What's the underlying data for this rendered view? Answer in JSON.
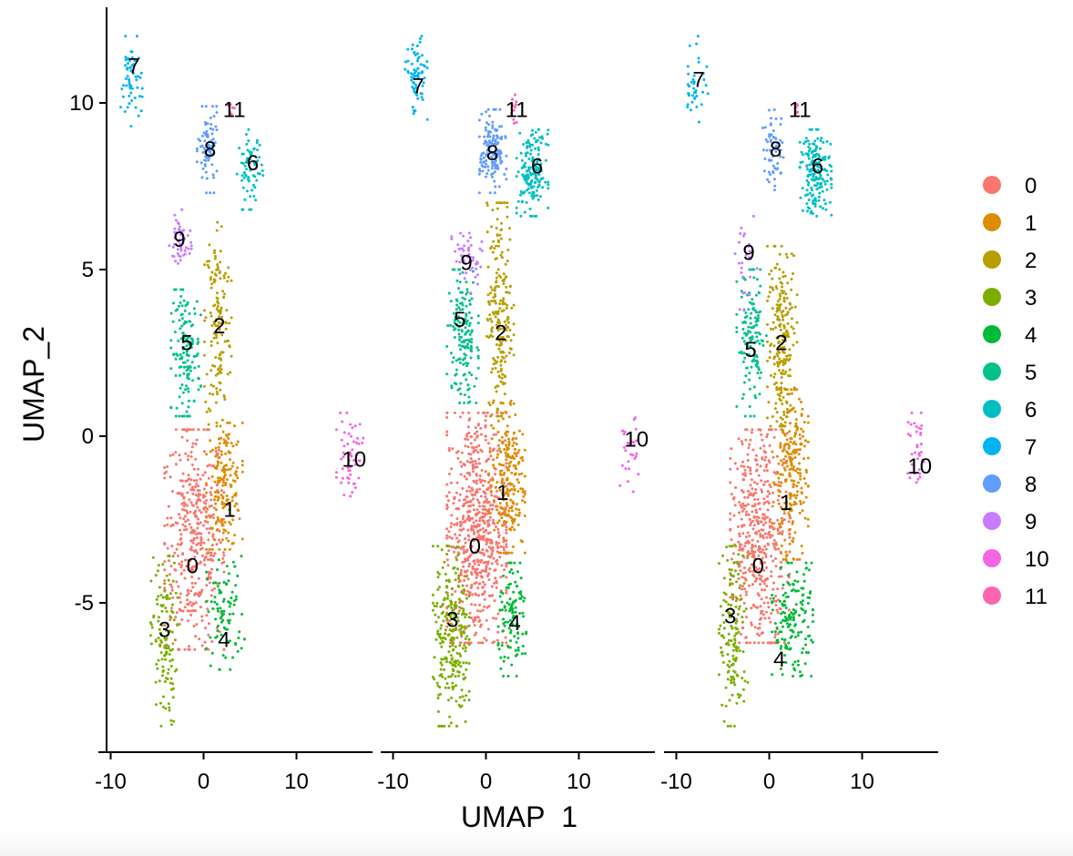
{
  "chart_data": {
    "type": "scatter",
    "xlabel": "UMAP_1",
    "ylabel": "UMAP_2",
    "xlim": [
      -10.5,
      18
    ],
    "ylim": [
      -9.5,
      12.8
    ],
    "x_ticks": [
      -10,
      0,
      10
    ],
    "y_ticks": [
      -5,
      0,
      5,
      10
    ],
    "grid": false,
    "legend_position": "right",
    "legend": [
      {
        "label": "0",
        "color": "#F8766D"
      },
      {
        "label": "1",
        "color": "#DE8C00"
      },
      {
        "label": "2",
        "color": "#B79F00"
      },
      {
        "label": "3",
        "color": "#7CAE00"
      },
      {
        "label": "4",
        "color": "#00BA38"
      },
      {
        "label": "5",
        "color": "#00C08B"
      },
      {
        "label": "6",
        "color": "#00BFC4"
      },
      {
        "label": "7",
        "color": "#00B4F0"
      },
      {
        "label": "8",
        "color": "#619CFF"
      },
      {
        "label": "9",
        "color": "#C77CFF"
      },
      {
        "label": "10",
        "color": "#F564E3"
      },
      {
        "label": "11",
        "color": "#FF64B0"
      }
    ],
    "panels": [
      {
        "clusters": [
          {
            "cluster": "0",
            "label_pos": [
              -1.2,
              -3.9
            ],
            "regions": [
              {
                "x": [
                  -4,
                  2
                ],
                "y": [
                  -6.2,
                  0
                ],
                "n": 420
              }
            ]
          },
          {
            "cluster": "1",
            "label_pos": [
              2.8,
              -2.2
            ],
            "regions": [
              {
                "x": [
                  0.5,
                  4
                ],
                "y": [
                  -3.2,
                  0.2
                ],
                "n": 170
              }
            ]
          },
          {
            "cluster": "2",
            "label_pos": [
              1.7,
              3.3
            ],
            "regions": [
              {
                "x": [
                  0.3,
                  2.8
                ],
                "y": [
                  0.5,
                  6.3
                ],
                "n": 150
              }
            ]
          },
          {
            "cluster": "3",
            "label_pos": [
              -4.2,
              -5.8
            ],
            "regions": [
              {
                "x": [
                  -5.5,
                  -3
                ],
                "y": [
                  -8.5,
                  -3.8
                ],
                "n": 130
              }
            ]
          },
          {
            "cluster": "4",
            "label_pos": [
              2.2,
              -6.1
            ],
            "regions": [
              {
                "x": [
                  0.5,
                  4.2
                ],
                "y": [
                  -6.8,
                  -3.8
                ],
                "n": 90
              }
            ]
          },
          {
            "cluster": "5",
            "label_pos": [
              -1.8,
              2.8
            ],
            "regions": [
              {
                "x": [
                  -3.3,
                  -0.5
                ],
                "y": [
                  0.8,
                  4.2
                ],
                "n": 150
              }
            ]
          },
          {
            "cluster": "6",
            "label_pos": [
              5.3,
              8.2
            ],
            "regions": [
              {
                "x": [
                  3.8,
                  6.2
                ],
                "y": [
                  7,
                  9
                ],
                "n": 70
              }
            ]
          },
          {
            "cluster": "7",
            "label_pos": [
              -7.5,
              11.1
            ],
            "regions": [
              {
                "x": [
                  -8.8,
                  -6.8
                ],
                "y": [
                  9.5,
                  11.8
                ],
                "n": 60
              }
            ]
          },
          {
            "cluster": "8",
            "label_pos": [
              0.7,
              8.6
            ],
            "regions": [
              {
                "x": [
                  -0.5,
                  1.5
                ],
                "y": [
                  7.5,
                  9.7
                ],
                "n": 80
              }
            ]
          },
          {
            "cluster": "9",
            "label_pos": [
              -2.6,
              5.9
            ],
            "regions": [
              {
                "x": [
                  -3.5,
                  -1.5
                ],
                "y": [
                  5,
                  6.6
                ],
                "n": 50
              }
            ]
          },
          {
            "cluster": "10",
            "label_pos": [
              16.2,
              -0.7
            ],
            "regions": [
              {
                "x": [
                  14.5,
                  17
                ],
                "y": [
                  -1.6,
                  0.5
                ],
                "n": 55
              }
            ]
          },
          {
            "cluster": "11",
            "label_pos": [
              3.3,
              9.8
            ],
            "regions": [
              {
                "x": [
                  2.6,
                  3.3
                ],
                "y": [
                  9.6,
                  10
                ],
                "n": 8
              }
            ]
          }
        ]
      },
      {
        "clusters": [
          {
            "cluster": "0",
            "label_pos": [
              -1.2,
              -3.3
            ],
            "regions": [
              {
                "x": [
                  -4,
                  2
                ],
                "y": [
                  -6,
                  0.5
                ],
                "n": 650
              }
            ]
          },
          {
            "cluster": "1",
            "label_pos": [
              1.8,
              -1.7
            ],
            "regions": [
              {
                "x": [
                  0.5,
                  4
                ],
                "y": [
                  -3.3,
                  0.8
                ],
                "n": 220
              }
            ]
          },
          {
            "cluster": "2",
            "label_pos": [
              1.6,
              3.1
            ],
            "regions": [
              {
                "x": [
                  0.3,
                  2.8
                ],
                "y": [
                  0.8,
                  6.8
                ],
                "n": 210
              }
            ]
          },
          {
            "cluster": "3",
            "label_pos": [
              -3.6,
              -5.5
            ],
            "regions": [
              {
                "x": [
                  -5.5,
                  -2
                ],
                "y": [
                  -8.5,
                  -3.5
                ],
                "n": 260
              }
            ]
          },
          {
            "cluster": "4",
            "label_pos": [
              3.1,
              -5.6
            ],
            "regions": [
              {
                "x": [
                  1.5,
                  4.5
                ],
                "y": [
                  -7,
                  -4
                ],
                "n": 110
              }
            ]
          },
          {
            "cluster": "5",
            "label_pos": [
              -2.8,
              3.5
            ],
            "regions": [
              {
                "x": [
                  -4,
                  -1
                ],
                "y": [
                  1.2,
                  4.8
                ],
                "n": 160
              }
            ]
          },
          {
            "cluster": "6",
            "label_pos": [
              5.5,
              8.1
            ],
            "regions": [
              {
                "x": [
                  3.5,
                  6.5
                ],
                "y": [
                  6.8,
                  9
                ],
                "n": 160
              }
            ]
          },
          {
            "cluster": "7",
            "label_pos": [
              -7.3,
              10.5
            ],
            "regions": [
              {
                "x": [
                  -8.5,
                  -6.5
                ],
                "y": [
                  9.7,
                  11.8
                ],
                "n": 70
              }
            ]
          },
          {
            "cluster": "8",
            "label_pos": [
              0.7,
              8.5
            ],
            "regions": [
              {
                "x": [
                  -0.5,
                  2
                ],
                "y": [
                  7.5,
                  9.6
                ],
                "n": 150
              }
            ]
          },
          {
            "cluster": "9",
            "label_pos": [
              -2.1,
              5.2
            ],
            "regions": [
              {
                "x": [
                  -3.5,
                  -0.5
                ],
                "y": [
                  4.5,
                  6.2
                ],
                "n": 50
              }
            ]
          },
          {
            "cluster": "10",
            "label_pos": [
              16.2,
              -0.1
            ],
            "regions": [
              {
                "x": [
                  14.5,
                  16.2
                ],
                "y": [
                  -1.5,
                  0.5
                ],
                "n": 30
              }
            ]
          },
          {
            "cluster": "11",
            "label_pos": [
              3.3,
              9.8
            ],
            "regions": [
              {
                "x": [
                  2.6,
                  3.4
                ],
                "y": [
                  9.4,
                  10.2
                ],
                "n": 12
              }
            ]
          }
        ]
      },
      {
        "clusters": [
          {
            "cluster": "0",
            "label_pos": [
              -1.2,
              -3.9
            ],
            "regions": [
              {
                "x": [
                  -4,
                  2
                ],
                "y": [
                  -6,
                  0
                ],
                "n": 480
              }
            ]
          },
          {
            "cluster": "1",
            "label_pos": [
              1.8,
              -2
            ],
            "regions": [
              {
                "x": [
                  0.5,
                  4
                ],
                "y": [
                  -3.5,
                  1.2
                ],
                "n": 230
              }
            ]
          },
          {
            "cluster": "2",
            "label_pos": [
              1.3,
              2.8
            ],
            "regions": [
              {
                "x": [
                  0,
                  2.8
                ],
                "y": [
                  0.5,
                  5.5
                ],
                "n": 220
              }
            ]
          },
          {
            "cluster": "3",
            "label_pos": [
              -4.2,
              -5.4
            ],
            "regions": [
              {
                "x": [
                  -5.2,
                  -2.5
                ],
                "y": [
                  -8.5,
                  -3.5
                ],
                "n": 150
              }
            ]
          },
          {
            "cluster": "4",
            "label_pos": [
              1.1,
              -6.7
            ],
            "regions": [
              {
                "x": [
                  0.5,
                  4.5
                ],
                "y": [
                  -7,
                  -4
                ],
                "n": 160
              }
            ]
          },
          {
            "cluster": "5",
            "label_pos": [
              -2,
              2.6
            ],
            "regions": [
              {
                "x": [
                  -3.3,
                  -0.5
                ],
                "y": [
                  0.8,
                  4.8
                ],
                "n": 130
              }
            ]
          },
          {
            "cluster": "6",
            "label_pos": [
              5.2,
              8.1
            ],
            "regions": [
              {
                "x": [
                  3.5,
                  6.5
                ],
                "y": [
                  6.8,
                  9
                ],
                "n": 180
              }
            ]
          },
          {
            "cluster": "7",
            "label_pos": [
              -7.6,
              10.7
            ],
            "regions": [
              {
                "x": [
                  -9,
                  -6.8
                ],
                "y": [
                  9.5,
                  11.8
                ],
                "n": 40
              }
            ]
          },
          {
            "cluster": "8",
            "label_pos": [
              0.7,
              8.6
            ],
            "regions": [
              {
                "x": [
                  -0.5,
                  1.5
                ],
                "y": [
                  7.5,
                  9.6
                ],
                "n": 60
              }
            ]
          },
          {
            "cluster": "9",
            "label_pos": [
              -2.2,
              5.5
            ],
            "regions": [
              {
                "x": [
                  -3.5,
                  -1.5
                ],
                "y": [
                  4,
                  6.4
                ],
                "n": 25
              }
            ]
          },
          {
            "cluster": "10",
            "label_pos": [
              16.2,
              -0.9
            ],
            "regions": [
              {
                "x": [
                  15,
                  16.8
                ],
                "y": [
                  -1.6,
                  0.5
                ],
                "n": 35
              }
            ]
          },
          {
            "cluster": "11",
            "label_pos": [
              3.3,
              9.8
            ],
            "regions": [
              {
                "x": [
                  2.6,
                  3.3
                ],
                "y": [
                  9.6,
                  10
                ],
                "n": 6
              }
            ]
          }
        ]
      }
    ]
  }
}
